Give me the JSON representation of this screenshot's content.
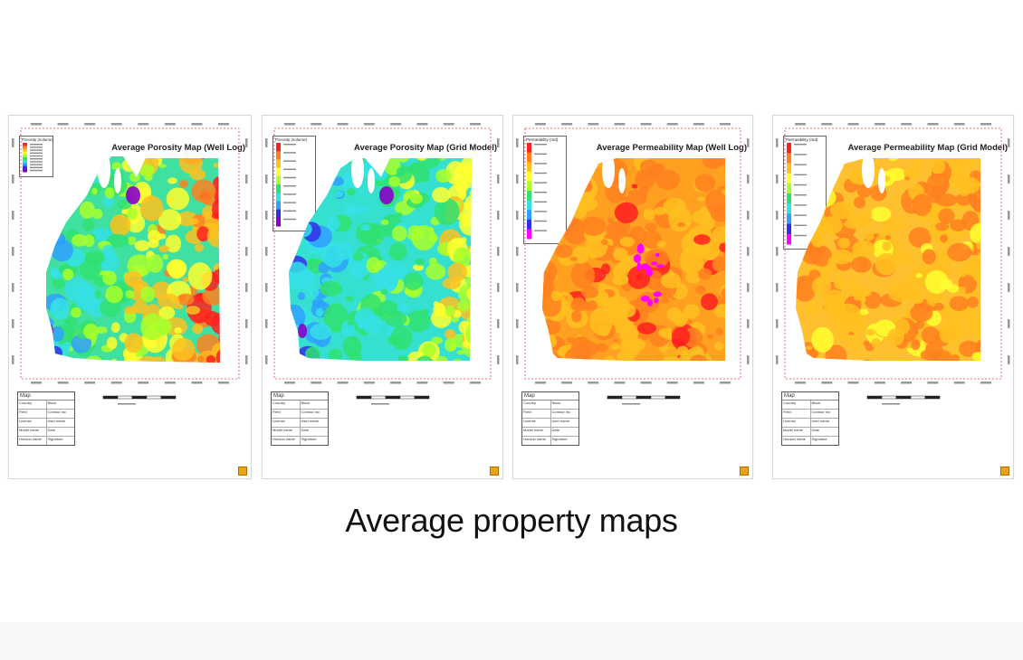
{
  "caption": "Average property maps",
  "maps": [
    {
      "title": "Average Porosity Map (Well Log)",
      "legend_title": "Porosity (volume)",
      "legend_size": "small",
      "scheme": "porosity_log",
      "table": {
        "title": "Map",
        "rows": [
          [
            "Country",
            "Block"
          ],
          [
            "Field",
            "Contour inc"
          ],
          [
            "License",
            "User name"
          ],
          [
            "Model name",
            "Date"
          ],
          [
            "Horizon name",
            "Signature"
          ]
        ]
      }
    },
    {
      "title": "Average Porosity Map (Grid Model)",
      "legend_title": "Porosity (volume)",
      "legend_size": "large",
      "scheme": "porosity_grid",
      "table": {
        "title": "Map",
        "rows": [
          [
            "Country",
            "Block"
          ],
          [
            "Field",
            "Contour inc"
          ],
          [
            "License",
            "User name"
          ],
          [
            "Model name",
            "Date"
          ],
          [
            "Horizon name",
            "Signature"
          ]
        ]
      }
    },
    {
      "title": "Average Permeability Map (Well Log)",
      "legend_title": "Permeability (md)",
      "legend_size": "large",
      "scheme": "perm_log",
      "table": {
        "title": "Map",
        "rows": [
          [
            "Country",
            "Block"
          ],
          [
            "Field",
            "Contour inc"
          ],
          [
            "License",
            "User name"
          ],
          [
            "Model name",
            "Date"
          ],
          [
            "Horizon name",
            "Signature"
          ]
        ]
      }
    },
    {
      "title": "Average Permeability Map (Grid Model)",
      "legend_title": "Permeability (md)",
      "legend_size": "large",
      "scheme": "perm_grid",
      "table": {
        "title": "Map",
        "rows": [
          [
            "Country",
            "Block"
          ],
          [
            "Field",
            "Contour inc"
          ],
          [
            "License",
            "User name"
          ],
          [
            "Model name",
            "Date"
          ],
          [
            "Horizon name",
            "Signature"
          ]
        ]
      }
    }
  ],
  "colors": {
    "frame_red": "#e04848",
    "porosity_ramp": [
      "#8a00c8",
      "#3030e8",
      "#2fa0ff",
      "#35e0e6",
      "#30e070",
      "#a8ff2c",
      "#ffff30",
      "#ffc020",
      "#ff8020",
      "#ff2020"
    ],
    "perm_ramp": [
      "#ff00ff",
      "#3030e8",
      "#2fa0ff",
      "#35e0e6",
      "#30e070",
      "#a8ff2c",
      "#ffff30",
      "#ffc020",
      "#ff8020",
      "#ff2020"
    ]
  }
}
